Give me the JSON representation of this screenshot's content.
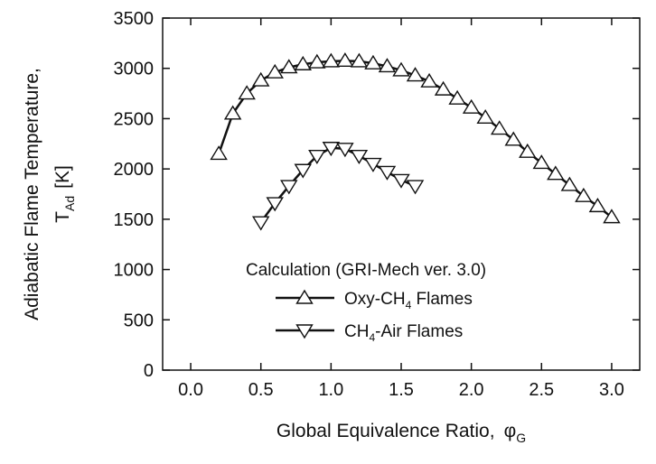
{
  "chart_data": {
    "type": "line",
    "title": "",
    "xlabel": {
      "main": "Global Equivalence Ratio,",
      "symbol": "φ",
      "subscript": "G"
    },
    "ylabel": {
      "line1": "Adiabatic Flame Temperature,",
      "symbol": "T",
      "subscript": "Ad",
      "unit": "[K]"
    },
    "xlim": [
      -0.2,
      3.2
    ],
    "ylim": [
      0,
      3500
    ],
    "xticks": [
      "0.0",
      "0.5",
      "1.0",
      "1.5",
      "2.0",
      "2.5",
      "3.0"
    ],
    "xtick_values": [
      0,
      0.5,
      1.0,
      1.5,
      2.0,
      2.5,
      3.0
    ],
    "yticks": [
      "0",
      "500",
      "1000",
      "1500",
      "2000",
      "2500",
      "3000",
      "3500"
    ],
    "ytick_values": [
      0,
      500,
      1000,
      1500,
      2000,
      2500,
      3000,
      3500
    ],
    "grid": false,
    "legend": {
      "title": "Calculation (GRI-Mech ver. 3.0)",
      "placement": "lower-center"
    },
    "series": [
      {
        "name": {
          "pre": "Oxy-CH",
          "sub": "4",
          "post": " Flames"
        },
        "marker": "triangle-up",
        "x": [
          0.2,
          0.3,
          0.4,
          0.5,
          0.6,
          0.7,
          0.8,
          0.9,
          1.0,
          1.1,
          1.2,
          1.3,
          1.4,
          1.5,
          1.6,
          1.7,
          1.8,
          1.9,
          2.0,
          2.1,
          2.2,
          2.3,
          2.4,
          2.5,
          2.6,
          2.7,
          2.8,
          2.9,
          3.0
        ],
        "y": [
          2150,
          2550,
          2750,
          2880,
          2960,
          3010,
          3040,
          3060,
          3070,
          3075,
          3070,
          3050,
          3020,
          2980,
          2930,
          2870,
          2790,
          2700,
          2610,
          2510,
          2400,
          2290,
          2170,
          2060,
          1950,
          1840,
          1730,
          1630,
          1520
        ]
      },
      {
        "name": {
          "pre": "CH",
          "sub": "4",
          "post": "-Air Flames"
        },
        "marker": "triangle-down",
        "x": [
          0.5,
          0.6,
          0.7,
          0.8,
          0.9,
          1.0,
          1.1,
          1.2,
          1.3,
          1.4,
          1.5,
          1.6
        ],
        "y": [
          1470,
          1660,
          1830,
          1990,
          2130,
          2210,
          2200,
          2130,
          2050,
          1970,
          1890,
          1830
        ]
      }
    ]
  }
}
